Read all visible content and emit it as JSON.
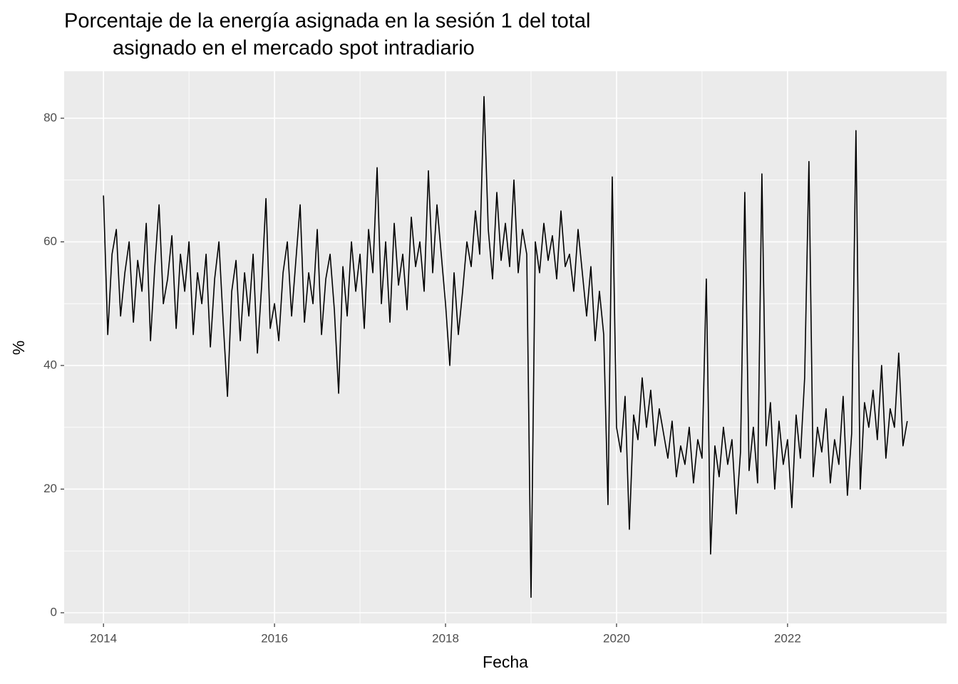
{
  "chart_data": {
    "type": "line",
    "title": [
      "Porcentaje de la energía asignada en la sesión 1 del total",
      "asignado en el mercado spot intradiario"
    ],
    "x_label": "Fecha",
    "y_label": "%",
    "x": [
      2014,
      2014.05,
      2014.1,
      2014.15,
      2014.2,
      2014.25,
      2014.3,
      2014.35,
      2014.4,
      2014.45,
      2014.5,
      2014.55,
      2014.6,
      2014.65,
      2014.7,
      2014.75,
      2014.8,
      2014.85,
      2014.9,
      2014.95,
      2015,
      2015.05,
      2015.1,
      2015.15,
      2015.2,
      2015.25,
      2015.3,
      2015.35,
      2015.4,
      2015.45,
      2015.5,
      2015.55,
      2015.6,
      2015.65,
      2015.7,
      2015.75,
      2015.8,
      2015.85,
      2015.9,
      2015.95,
      2016,
      2016.05,
      2016.1,
      2016.15,
      2016.2,
      2016.25,
      2016.3,
      2016.35,
      2016.4,
      2016.45,
      2016.5,
      2016.55,
      2016.6,
      2016.65,
      2016.7,
      2016.75,
      2016.8,
      2016.85,
      2016.9,
      2016.95,
      2017,
      2017.05,
      2017.1,
      2017.15,
      2017.2,
      2017.25,
      2017.3,
      2017.35,
      2017.4,
      2017.45,
      2017.5,
      2017.55,
      2017.6,
      2017.65,
      2017.7,
      2017.75,
      2017.8,
      2017.85,
      2017.9,
      2017.95,
      2018,
      2018.05,
      2018.1,
      2018.15,
      2018.2,
      2018.25,
      2018.3,
      2018.35,
      2018.4,
      2018.45,
      2018.5,
      2018.55,
      2018.6,
      2018.65,
      2018.7,
      2018.75,
      2018.8,
      2018.85,
      2018.9,
      2018.95,
      2019,
      2019.05,
      2019.1,
      2019.15,
      2019.2,
      2019.25,
      2019.3,
      2019.35,
      2019.4,
      2019.45,
      2019.5,
      2019.55,
      2019.6,
      2019.65,
      2019.7,
      2019.75,
      2019.8,
      2019.85,
      2019.9,
      2019.95,
      2020,
      2020.05,
      2020.1,
      2020.15,
      2020.2,
      2020.25,
      2020.3,
      2020.35,
      2020.4,
      2020.45,
      2020.5,
      2020.55,
      2020.6,
      2020.65,
      2020.7,
      2020.75,
      2020.8,
      2020.85,
      2020.9,
      2020.95,
      2021,
      2021.05,
      2021.1,
      2021.15,
      2021.2,
      2021.25,
      2021.3,
      2021.35,
      2021.4,
      2021.45,
      2021.5,
      2021.55,
      2021.6,
      2021.65,
      2021.7,
      2021.75,
      2021.8,
      2021.85,
      2021.9,
      2021.95,
      2022,
      2022.05,
      2022.1,
      2022.15,
      2022.2,
      2022.25,
      2022.3,
      2022.35,
      2022.4,
      2022.45,
      2022.5,
      2022.55,
      2022.6,
      2022.65,
      2022.7,
      2022.75,
      2022.8,
      2022.85,
      2022.9,
      2022.95,
      2023,
      2023.05,
      2023.1,
      2023.15,
      2023.2,
      2023.25,
      2023.3,
      2023.35,
      2023.4
    ],
    "values": [
      67.5,
      45,
      58,
      62,
      48,
      55,
      60,
      47,
      57,
      52,
      63,
      44,
      56,
      66,
      50,
      54,
      61,
      46,
      58,
      52,
      60,
      45,
      55,
      50,
      58,
      43,
      54,
      60,
      47,
      35,
      52,
      57,
      44,
      55,
      48,
      58,
      42,
      53,
      67,
      46,
      50,
      44,
      55,
      60,
      48,
      57,
      66,
      47,
      55,
      50,
      62,
      45,
      54,
      58,
      49,
      35.5,
      56,
      48,
      60,
      52,
      58,
      46,
      62,
      55,
      72,
      50,
      60,
      47,
      63,
      53,
      58,
      49,
      64,
      56,
      60,
      52,
      71.5,
      55,
      66,
      58,
      50,
      40,
      55,
      45,
      52,
      60,
      56,
      65,
      58,
      83.5,
      62,
      54,
      68,
      57,
      63,
      56,
      70,
      55,
      62,
      58,
      2.5,
      60,
      55,
      63,
      57,
      61,
      54,
      65,
      56,
      58,
      52,
      62,
      55,
      48,
      56,
      44,
      52,
      45,
      17.5,
      70.5,
      30,
      26,
      35,
      13.5,
      32,
      28,
      38,
      30,
      36,
      27,
      33,
      29,
      25,
      31,
      22,
      27,
      24,
      30,
      21,
      28,
      25,
      54,
      9.5,
      27,
      22,
      30,
      24,
      28,
      16,
      26,
      68,
      23,
      30,
      21,
      71,
      27,
      34,
      20,
      31,
      24,
      28,
      17,
      32,
      25,
      38,
      73,
      22,
      30,
      26,
      33,
      21,
      28,
      24,
      35,
      19,
      29,
      78,
      20,
      34,
      30,
      36,
      28,
      40,
      25,
      33,
      30,
      42,
      27,
      31
    ],
    "color": "#000000",
    "xlim": [
      2013.54,
      2023.86
    ],
    "xticks": [
      2014,
      2016,
      2018,
      2020,
      2022
    ],
    "ylim": [
      -1.73,
      87.6
    ],
    "yticks": [
      0,
      20,
      40,
      60,
      80
    ],
    "grid": true,
    "minor_grid": true
  }
}
